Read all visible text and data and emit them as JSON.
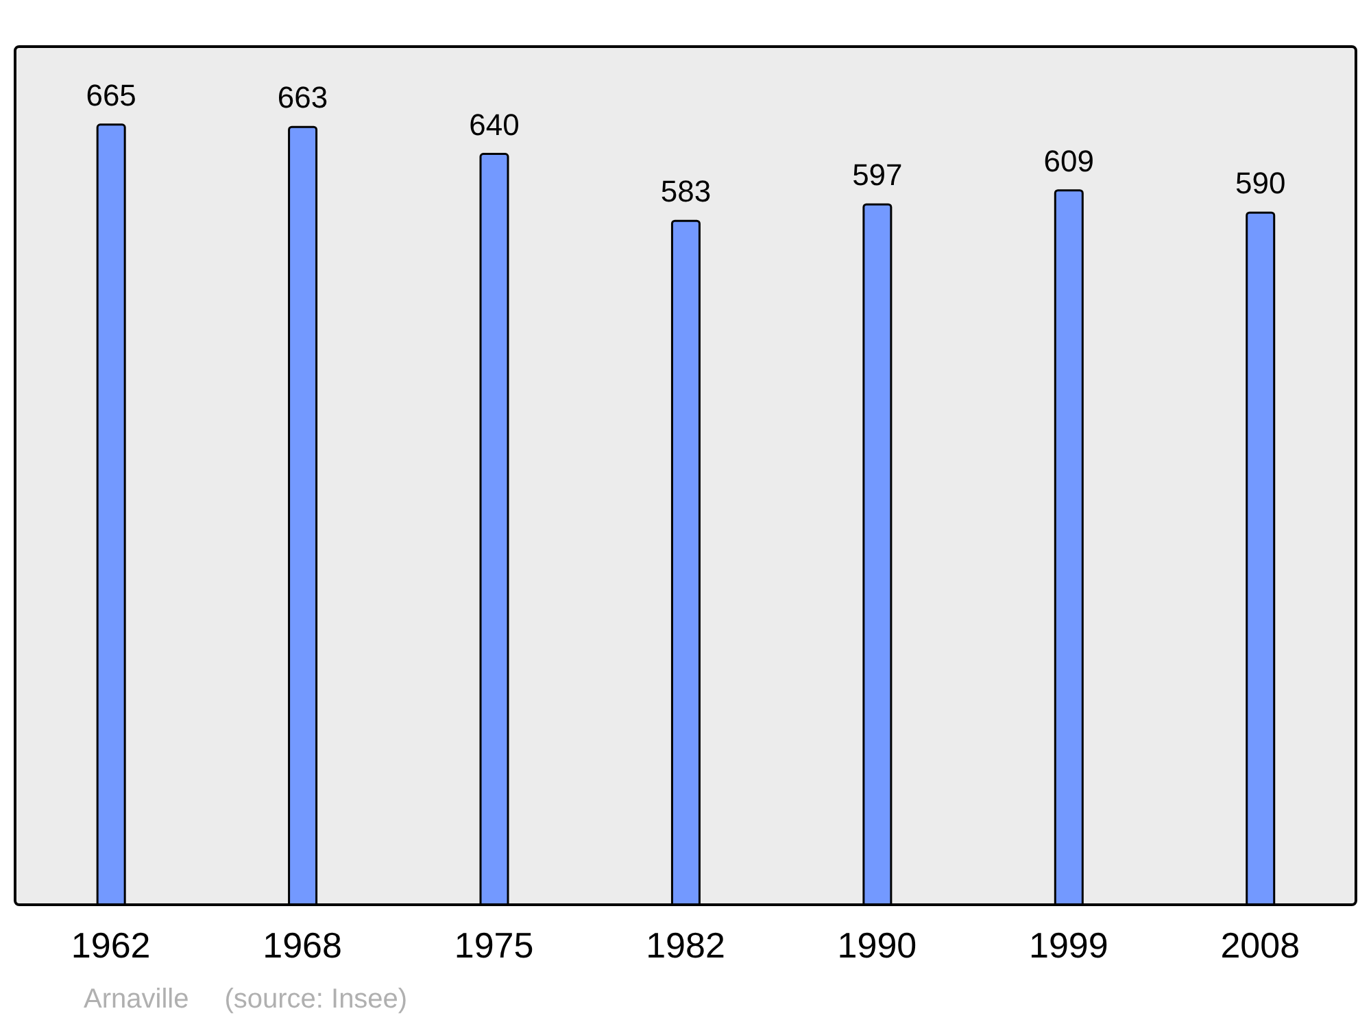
{
  "chart_data": {
    "type": "bar",
    "categories": [
      "1962",
      "1968",
      "1975",
      "1982",
      "1990",
      "1999",
      "2008"
    ],
    "values": [
      665,
      663,
      640,
      583,
      597,
      609,
      590
    ],
    "color": "#7399ff",
    "data_labels": true,
    "annotations": [
      "Arnaville",
      "(source: Insee)"
    ]
  }
}
